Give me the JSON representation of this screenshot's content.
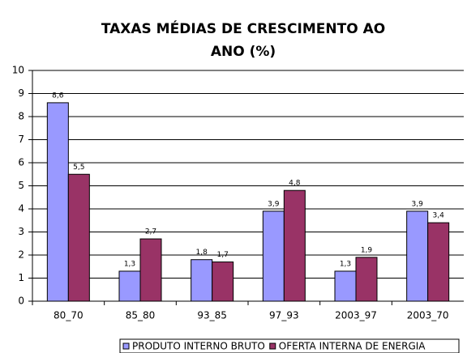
{
  "chart_data": {
    "type": "bar",
    "title": [
      "TAXAS MÉDIAS DE CRESCIMENTO AO",
      "ANO (%)"
    ],
    "categories": [
      "80_70",
      "85_80",
      "93_85",
      "97_93",
      "2003_97",
      "2003_70"
    ],
    "series": [
      {
        "name": "PRODUTO INTERNO BRUTO",
        "color": "#9999ff",
        "values": [
          8.6,
          1.3,
          1.8,
          3.9,
          1.3,
          3.9
        ],
        "value_labels": [
          "8,6",
          "1,3",
          "1,8",
          "3,9",
          "1,3",
          "3,9"
        ]
      },
      {
        "name": "OFERTA INTERNA DE ENERGIA",
        "color": "#993366",
        "values": [
          5.5,
          2.7,
          1.7,
          4.8,
          1.9,
          3.4
        ],
        "value_labels": [
          "5,5",
          "2,7",
          "1,7",
          "4,8",
          "1,9",
          "3,4"
        ]
      }
    ],
    "ylim": [
      0,
      10
    ],
    "yticks": [
      0,
      1,
      2,
      3,
      4,
      5,
      6,
      7,
      8,
      9,
      10
    ],
    "grid": true,
    "legend": "bottom"
  }
}
